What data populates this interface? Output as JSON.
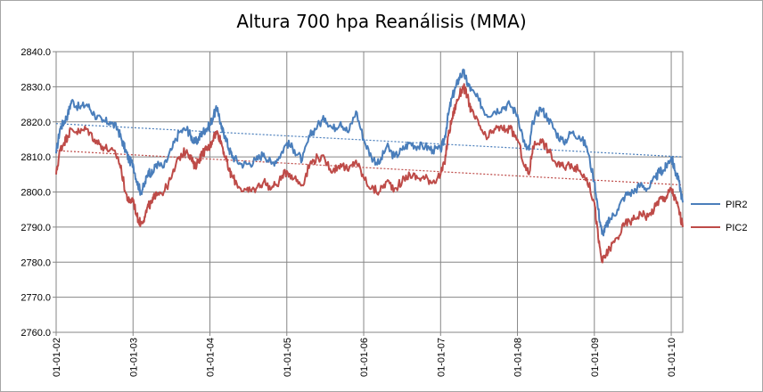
{
  "chart_data": {
    "type": "line",
    "title": "Altura 700 hpa Reanálisis (MMA)",
    "xlabel": "",
    "ylabel": "",
    "ylim": [
      2760.0,
      2840.0
    ],
    "y_ticks": [
      "2760.0",
      "2770.0",
      "2780.0",
      "2790.0",
      "2800.0",
      "2810.0",
      "2820.0",
      "2830.0",
      "2840.0"
    ],
    "x_ticks": [
      "01-01-02",
      "01-01-03",
      "01-01-04",
      "01-01-05",
      "01-01-06",
      "01-01-07",
      "01-01-08",
      "01-01-09",
      "01-01-10"
    ],
    "x_range": [
      2002.0,
      2010.15
    ],
    "grid": true,
    "legend_position": "right",
    "colors": {
      "PIR2": "#4a7ebb",
      "PIC2": "#be4b48",
      "grid": "#868686"
    },
    "series": [
      {
        "name": "PIR2",
        "color": "#4a7ebb",
        "x": [
          2002.0,
          2002.05,
          2002.1,
          2002.15,
          2002.2,
          2002.3,
          2002.4,
          2002.5,
          2002.6,
          2002.7,
          2002.8,
          2002.85,
          2002.9,
          2002.95,
          2003.0,
          2003.05,
          2003.1,
          2003.15,
          2003.2,
          2003.25,
          2003.3,
          2003.4,
          2003.5,
          2003.6,
          2003.7,
          2003.75,
          2003.8,
          2003.85,
          2003.9,
          2003.95,
          2004.0,
          2004.05,
          2004.1,
          2004.15,
          2004.2,
          2004.25,
          2004.3,
          2004.4,
          2004.5,
          2004.6,
          2004.7,
          2004.8,
          2004.9,
          2005.0,
          2005.1,
          2005.2,
          2005.3,
          2005.4,
          2005.5,
          2005.6,
          2005.7,
          2005.8,
          2005.9,
          2006.0,
          2006.1,
          2006.2,
          2006.3,
          2006.4,
          2006.5,
          2006.6,
          2006.7,
          2006.8,
          2006.9,
          2007.0,
          2007.05,
          2007.1,
          2007.15,
          2007.2,
          2007.25,
          2007.3,
          2007.35,
          2007.4,
          2007.5,
          2007.6,
          2007.7,
          2007.8,
          2007.9,
          2008.0,
          2008.1,
          2008.15,
          2008.2,
          2008.3,
          2008.4,
          2008.5,
          2008.6,
          2008.7,
          2008.8,
          2008.9,
          2009.0,
          2009.05,
          2009.1,
          2009.15,
          2009.2,
          2009.3,
          2009.4,
          2009.5,
          2009.6,
          2009.7,
          2009.8,
          2009.85,
          2009.9,
          2009.95,
          2010.0,
          2010.05,
          2010.1,
          2010.15
        ],
        "values": [
          2811,
          2818,
          2820,
          2822,
          2826,
          2824,
          2825,
          2822,
          2820,
          2820,
          2818,
          2815,
          2812,
          2809,
          2808,
          2803,
          2800,
          2802,
          2806,
          2805,
          2808,
          2807,
          2812,
          2817,
          2818,
          2816,
          2814,
          2815,
          2817,
          2818,
          2819,
          2822,
          2824,
          2818,
          2816,
          2812,
          2810,
          2808,
          2808,
          2809,
          2811,
          2808,
          2810,
          2814,
          2812,
          2809,
          2816,
          2819,
          2821,
          2818,
          2820,
          2817,
          2823,
          2815,
          2810,
          2808,
          2813,
          2810,
          2812,
          2814,
          2813,
          2813,
          2812,
          2812,
          2815,
          2822,
          2827,
          2830,
          2833,
          2834,
          2831,
          2829,
          2826,
          2822,
          2823,
          2824,
          2825,
          2822,
          2813,
          2812,
          2820,
          2824,
          2821,
          2817,
          2814,
          2817,
          2816,
          2813,
          2803,
          2795,
          2788,
          2790,
          2792,
          2795,
          2799,
          2800,
          2802,
          2801,
          2804,
          2806,
          2806,
          2808,
          2810,
          2806,
          2803,
          2797
        ]
      },
      {
        "name": "PIC2",
        "color": "#be4b48",
        "x": [
          2002.0,
          2002.05,
          2002.1,
          2002.15,
          2002.2,
          2002.3,
          2002.4,
          2002.5,
          2002.6,
          2002.7,
          2002.8,
          2002.85,
          2002.9,
          2002.95,
          2003.0,
          2003.05,
          2003.1,
          2003.15,
          2003.2,
          2003.25,
          2003.3,
          2003.4,
          2003.5,
          2003.6,
          2003.7,
          2003.75,
          2003.8,
          2003.85,
          2003.9,
          2003.95,
          2004.0,
          2004.05,
          2004.1,
          2004.15,
          2004.2,
          2004.25,
          2004.3,
          2004.4,
          2004.5,
          2004.6,
          2004.7,
          2004.8,
          2004.9,
          2005.0,
          2005.1,
          2005.2,
          2005.3,
          2005.4,
          2005.5,
          2005.6,
          2005.7,
          2005.8,
          2005.9,
          2006.0,
          2006.1,
          2006.2,
          2006.3,
          2006.4,
          2006.5,
          2006.6,
          2006.7,
          2006.8,
          2006.9,
          2007.0,
          2007.05,
          2007.1,
          2007.15,
          2007.2,
          2007.25,
          2007.3,
          2007.35,
          2007.4,
          2007.5,
          2007.6,
          2007.7,
          2007.8,
          2007.9,
          2008.0,
          2008.1,
          2008.15,
          2008.2,
          2008.3,
          2008.4,
          2008.5,
          2008.6,
          2008.7,
          2008.8,
          2008.9,
          2009.0,
          2009.05,
          2009.1,
          2009.15,
          2009.2,
          2009.3,
          2009.4,
          2009.5,
          2009.6,
          2009.7,
          2009.8,
          2009.85,
          2009.9,
          2009.95,
          2010.0,
          2010.05,
          2010.1,
          2010.15
        ],
        "values": [
          2805,
          2812,
          2814,
          2816,
          2818,
          2817,
          2818,
          2815,
          2813,
          2812,
          2810,
          2806,
          2800,
          2797,
          2798,
          2793,
          2791,
          2793,
          2796,
          2797,
          2800,
          2800,
          2804,
          2810,
          2812,
          2810,
          2807,
          2809,
          2811,
          2812,
          2813,
          2816,
          2817,
          2814,
          2810,
          2806,
          2804,
          2801,
          2800,
          2801,
          2803,
          2801,
          2803,
          2806,
          2804,
          2802,
          2808,
          2810,
          2809,
          2806,
          2808,
          2806,
          2809,
          2804,
          2801,
          2800,
          2803,
          2801,
          2803,
          2805,
          2804,
          2804,
          2803,
          2805,
          2808,
          2816,
          2821,
          2825,
          2828,
          2830,
          2827,
          2823,
          2819,
          2815,
          2818,
          2818,
          2818,
          2815,
          2807,
          2805,
          2813,
          2815,
          2812,
          2808,
          2807,
          2808,
          2806,
          2804,
          2797,
          2787,
          2780,
          2782,
          2784,
          2787,
          2791,
          2792,
          2794,
          2793,
          2796,
          2798,
          2798,
          2799,
          2801,
          2798,
          2795,
          2790
        ]
      }
    ],
    "trendlines": [
      {
        "name": "PIR2",
        "color": "#4a7ebb",
        "x": [
          2002.0,
          2010.15
        ],
        "values": [
          2819.5,
          2810.0
        ]
      },
      {
        "name": "PIC2",
        "color": "#be4b48",
        "x": [
          2002.0,
          2010.15
        ],
        "values": [
          2811.8,
          2802.0
        ]
      }
    ]
  }
}
